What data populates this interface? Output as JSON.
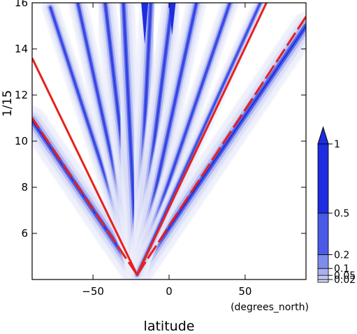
{
  "chart_data": {
    "type": "heatmap",
    "xlabel": "latitude",
    "xunits": "(degrees_north)",
    "ylabel": "1/15",
    "xlim": [
      -90,
      90
    ],
    "ylim": [
      4,
      16
    ],
    "xticks": [
      -50,
      0,
      50
    ],
    "yticks": [
      6,
      8,
      10,
      12,
      14,
      16
    ],
    "colorbar": {
      "levels": [
        0.02,
        0.05,
        0.1,
        0.2,
        0.5,
        1
      ],
      "labels": [
        "0.02",
        "0.05",
        "0.1",
        "0.2",
        "0.5",
        "1"
      ],
      "extend": "max",
      "colors": [
        "#eceefb",
        "#d9dcf6",
        "#c3c8f3",
        "#a8b0f0",
        "#7e8cec",
        "#4a5ae6",
        "#1c2ee0"
      ]
    },
    "contour_ridges": [
      {
        "x0": -21,
        "y0": 4.2,
        "x1": -90,
        "y1": 10.9,
        "strength": 1
      },
      {
        "x0": -21,
        "y0": 4.2,
        "x1": 90,
        "y1": 15.0,
        "strength": 1
      },
      {
        "x0": -21,
        "y0": 4.2,
        "x1": -78,
        "y1": 15.8,
        "strength": 0.55
      },
      {
        "x0": -21,
        "y0": 4.2,
        "x1": -60,
        "y1": 16.0,
        "strength": 0.6
      },
      {
        "x0": -21,
        "y0": 4.2,
        "x1": -42,
        "y1": 16.0,
        "strength": 0.7
      },
      {
        "x0": -21,
        "y0": 4.2,
        "x1": -30,
        "y1": 16.0,
        "strength": 0.75
      },
      {
        "x0": -21,
        "y0": 4.2,
        "x1": -12,
        "y1": 16.0,
        "strength": 0.75
      },
      {
        "x0": -21,
        "y0": 4.2,
        "x1": 2,
        "y1": 16.0,
        "strength": 0.7
      },
      {
        "x0": -21,
        "y0": 4.2,
        "x1": 18,
        "y1": 16.0,
        "strength": 0.65
      },
      {
        "x0": -21,
        "y0": 4.2,
        "x1": 40,
        "y1": 16.0,
        "strength": 0.55
      },
      {
        "x0": -21,
        "y0": 4.2,
        "x1": 60,
        "y1": 16.0,
        "strength": 0.4
      }
    ],
    "spikes": [
      {
        "x": -16,
        "y0": 14.2,
        "y1": 16.0
      },
      {
        "x": 2,
        "y0": 14.6,
        "y1": 16.0
      }
    ],
    "reference_lines": [
      {
        "style": "solid",
        "color": "#e8201c",
        "x0": -21,
        "y0": 4.2,
        "x1": -90,
        "y1": 13.6
      },
      {
        "style": "solid",
        "color": "#e8201c",
        "x0": -21,
        "y0": 4.2,
        "x1": 64,
        "y1": 16.0
      },
      {
        "style": "dashed",
        "color": "#e8201c",
        "x0": -21,
        "y0": 4.2,
        "x1": -90,
        "y1": 11.0
      },
      {
        "style": "dashed",
        "color": "#e8201c",
        "x0": -21,
        "y0": 4.2,
        "x1": 90,
        "y1": 15.4
      }
    ]
  }
}
